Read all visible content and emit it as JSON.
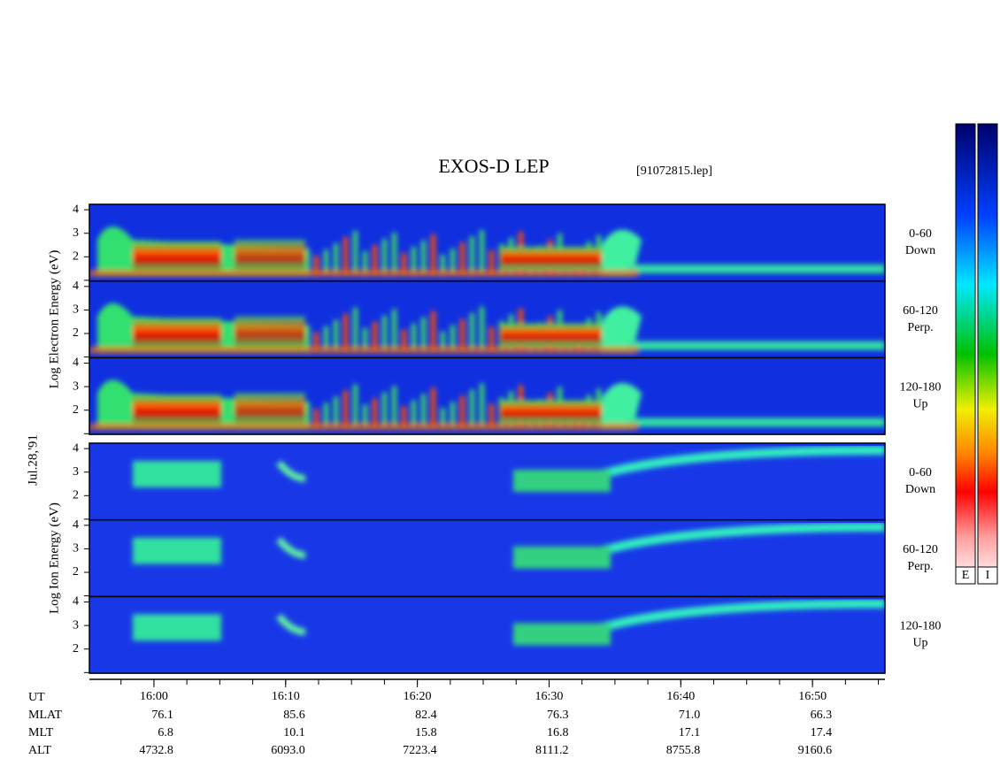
{
  "chart_data": {
    "type": "spectrogram",
    "title": "EXOS-D LEP",
    "file_label": "[91072815.lep]",
    "date_label": "Jul.28,'91",
    "xlim": [
      955.1,
      1015.5
    ],
    "xticks": [
      {
        "value": 960,
        "label": "16:00"
      },
      {
        "value": 970,
        "label": "16:10"
      },
      {
        "value": 980,
        "label": "16:20"
      },
      {
        "value": 990,
        "label": "16:30"
      },
      {
        "value": 1000,
        "label": "16:40"
      },
      {
        "value": 1010,
        "label": "16:50"
      }
    ],
    "ylim": [
      0.97,
      4.23
    ],
    "yticks": [
      {
        "value": 1,
        "label": null
      },
      2,
      3,
      4
    ],
    "groups": [
      {
        "axis_label": "Log Electron Energy (eV)",
        "panels": [
          {
            "label": "0-60",
            "sublabel": "Down"
          },
          {
            "label": "60-120",
            "sublabel": "Perp."
          },
          {
            "label": "120-180",
            "sublabel": "Up"
          }
        ]
      },
      {
        "axis_label": "Log Ion Energy (eV)",
        "panels": [
          {
            "label": "0-60",
            "sublabel": "Down"
          },
          {
            "label": "60-120",
            "sublabel": "Perp."
          },
          {
            "label": "120-180",
            "sublabel": "Up"
          }
        ]
      }
    ],
    "colorbars": [
      "E",
      "I"
    ],
    "ephemeris": {
      "time_label": "UT",
      "rows": [
        {
          "label": "MLAT",
          "values": [
            "76.1",
            "85.6",
            "82.4",
            "76.3",
            "71.0",
            "66.3"
          ]
        },
        {
          "label": "MLT",
          "values": [
            "6.8",
            "10.1",
            "15.8",
            "16.8",
            "17.1",
            "17.4"
          ]
        },
        {
          "label": "ALT",
          "values": [
            "4732.8",
            "6093.0",
            "7223.4",
            "8111.2",
            "8755.8",
            "9160.6"
          ]
        }
      ]
    }
  }
}
